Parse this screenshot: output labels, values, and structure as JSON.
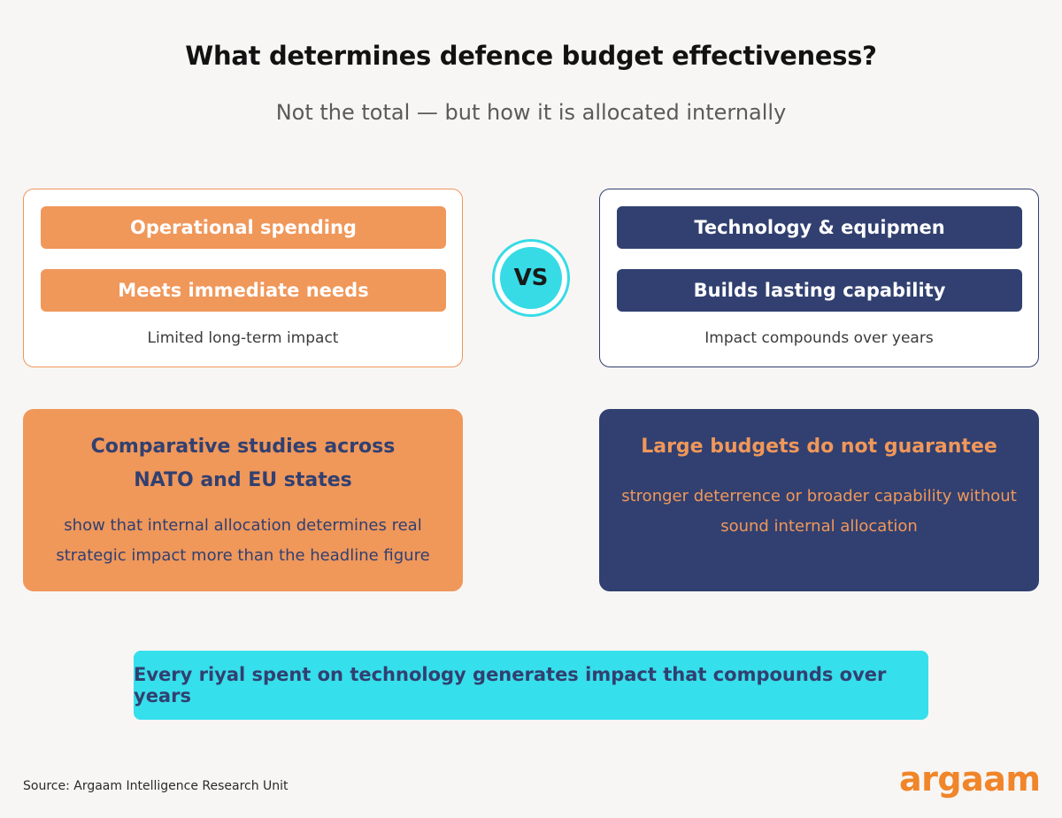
{
  "header": {
    "title": "What determines defence budget effectiveness?",
    "subtitle": "Not the total — but how it is allocated internally"
  },
  "comparison": {
    "left": {
      "primary": "Operational spending",
      "secondary": "Meets immediate needs",
      "note": "Limited long-term impact"
    },
    "vs": "VS",
    "right": {
      "primary": "Technology & equipmen",
      "secondary": "Builds lasting capability",
      "note": "Impact compounds over years"
    }
  },
  "findings": {
    "left": {
      "heading": "Comparative studies across NATO and EU states",
      "body": "show that internal allocation determines real strategic impact more than the headline figure"
    },
    "right": {
      "heading": "Large budgets do not guarantee",
      "body": "stronger deterrence or broader capability without sound internal allocation"
    }
  },
  "banner": {
    "text": "Every riyal spent on technology generates impact that compounds over years"
  },
  "footer": {
    "source": "Source: Argaam Intelligence Research Unit",
    "logo": "argaam"
  },
  "colors": {
    "orange": "#f0975a",
    "navy": "#314070",
    "cyan": "#36dbe6",
    "logo": "#f0852a"
  }
}
